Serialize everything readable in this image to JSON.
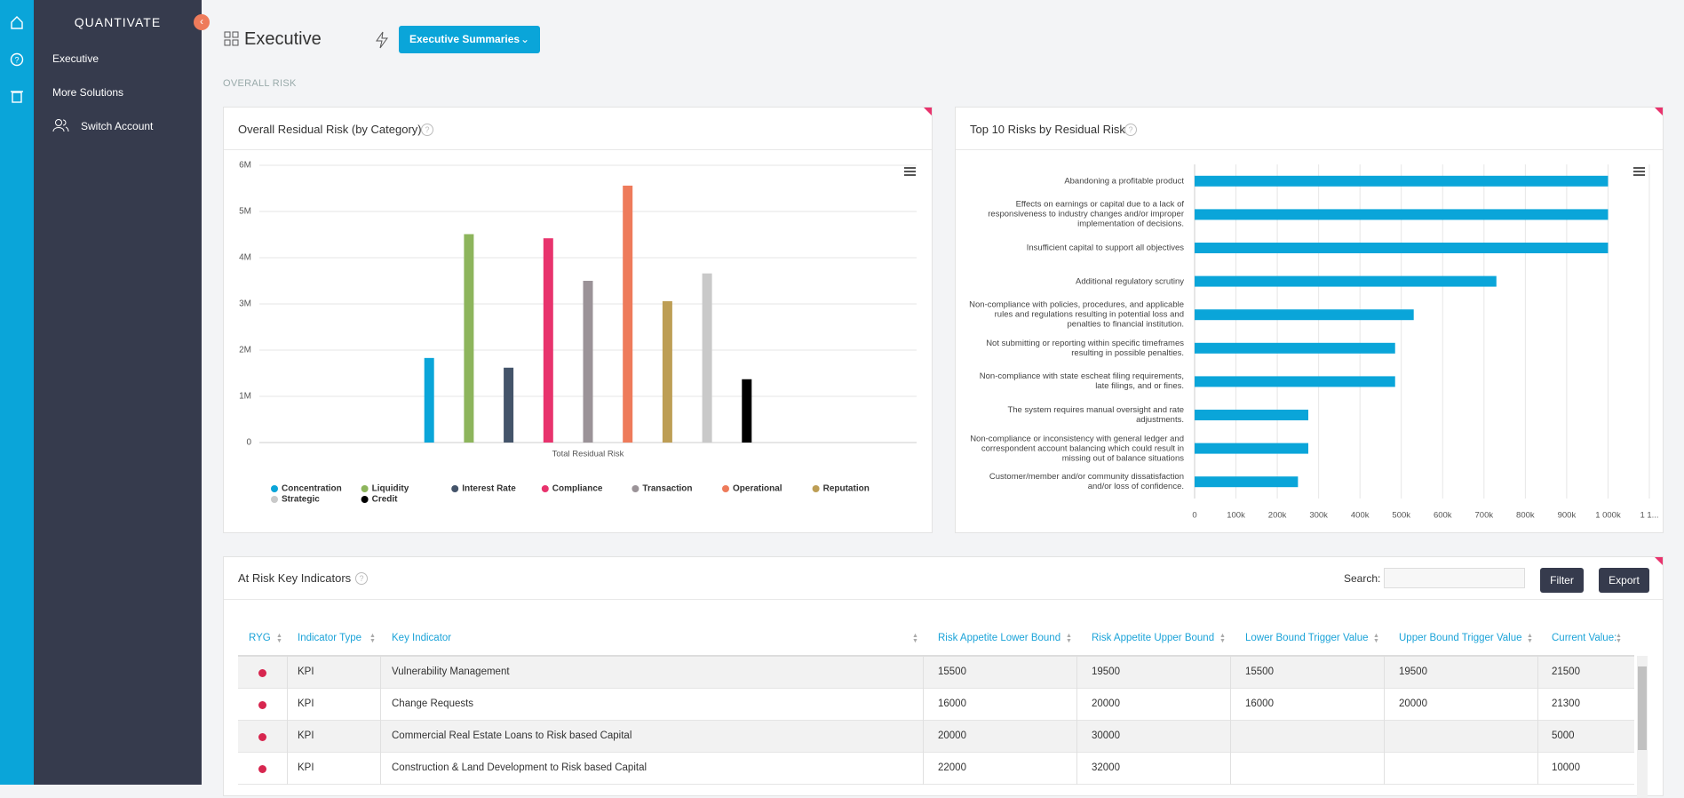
{
  "sidebar": {
    "brand": "QUANTIVATE",
    "items": [
      "Executive",
      "More Solutions",
      "Switch Account"
    ]
  },
  "header": {
    "title": "Executive",
    "button": "Executive Summaries",
    "section": "OVERALL RISK"
  },
  "chart_data": [
    {
      "type": "bar",
      "title": "Overall Residual Risk (by Category)",
      "categories": [
        "Total Residual Risk"
      ],
      "series": [
        {
          "name": "Concentration",
          "color": "#0aa5d9",
          "values": [
            1830000
          ]
        },
        {
          "name": "Liquidity",
          "color": "#8db55c",
          "values": [
            4510000
          ]
        },
        {
          "name": "Interest Rate",
          "color": "#44546a",
          "values": [
            1620000
          ]
        },
        {
          "name": "Compliance",
          "color": "#e8336d",
          "values": [
            4420000
          ]
        },
        {
          "name": "Transaction",
          "color": "#9b9398",
          "values": [
            3500000
          ]
        },
        {
          "name": "Operational",
          "color": "#ee7b5b",
          "values": [
            5560000
          ]
        },
        {
          "name": "Reputation",
          "color": "#bd9e55",
          "values": [
            3060000
          ]
        },
        {
          "name": "Strategic",
          "color": "#c9c9c9",
          "values": [
            3660000
          ]
        },
        {
          "name": "Credit",
          "color": "#000000",
          "values": [
            1370000
          ]
        }
      ],
      "ylim": [
        0,
        6000000
      ],
      "yticks": [
        0,
        {
          "value": 1000000,
          "label": "1M"
        },
        {
          "value": 2000000,
          "label": "2M"
        },
        {
          "value": 3000000,
          "label": "3M"
        },
        {
          "value": 4000000,
          "label": "4M"
        },
        {
          "value": 5000000,
          "label": "5M"
        },
        {
          "value": 6000000,
          "label": "6M"
        }
      ],
      "grid": true,
      "legend": "bottom"
    },
    {
      "type": "barh",
      "title": "Top 10 Risks by Residual Risk",
      "categories": [
        "Abandoning a profitable product",
        "Effects on earnings or capital due to a lack of responsiveness to industry changes and/or improper implementation of decisions.",
        "Insufficient capital to support all objectives",
        "Additional regulatory scrutiny",
        "Non-compliance with policies, procedures, and applicable rules and regulations resulting in potential loss and penalties to financial institution.",
        "Not submitting or reporting within specific timeframes resulting in possible penalties.",
        "Non-compliance with state escheat filing requirements, late filings, and or fines.",
        "The system requires manual oversight and rate adjustments.",
        "Non-compliance or inconsistency with general ledger and correspondent account balancing which could result in missing out of balance situations",
        "Customer/member and/or community dissatisfaction and/or loss of confidence."
      ],
      "values": [
        1000000,
        1000000,
        1000000,
        730000,
        530000,
        485000,
        485000,
        275000,
        275000,
        250000
      ],
      "color": "#0aa5d9",
      "xlim": [
        0,
        1100000
      ],
      "xticks": [
        0,
        {
          "value": 100000,
          "label": "100k"
        },
        {
          "value": 200000,
          "label": "200k"
        },
        {
          "value": 300000,
          "label": "300k"
        },
        {
          "value": 400000,
          "label": "400k"
        },
        {
          "value": 500000,
          "label": "500k"
        },
        {
          "value": 600000,
          "label": "600k"
        },
        {
          "value": 700000,
          "label": "700k"
        },
        {
          "value": 800000,
          "label": "800k"
        },
        {
          "value": 900000,
          "label": "900k"
        },
        {
          "value": 1000000,
          "label": "1 000k"
        },
        {
          "value": 1100000,
          "label": "1 1..."
        }
      ],
      "grid": true
    }
  ],
  "table": {
    "title": "At Risk Key Indicators",
    "search_label": "Search:",
    "buttons": [
      "Filter",
      "Export"
    ],
    "columns": [
      "RYG",
      "Indicator Type",
      "Key Indicator",
      "Risk Appetite Lower Bound",
      "Risk Appetite Upper Bound",
      "Lower Bound Trigger Value",
      "Upper Bound Trigger Value",
      "Current Value:"
    ],
    "rows": [
      [
        "KPI",
        "Vulnerability Management",
        15500,
        19500,
        15500,
        19500,
        21500
      ],
      [
        "KPI",
        "Change Requests",
        16000,
        20000,
        16000,
        20000,
        21300
      ],
      [
        "KPI",
        "Commercial Real Estate Loans to Risk based Capital",
        20000,
        30000,
        null,
        null,
        5000
      ],
      [
        "KPI",
        "Construction & Land Development to Risk based Capital",
        22000,
        32000,
        null,
        null,
        10000
      ]
    ]
  }
}
